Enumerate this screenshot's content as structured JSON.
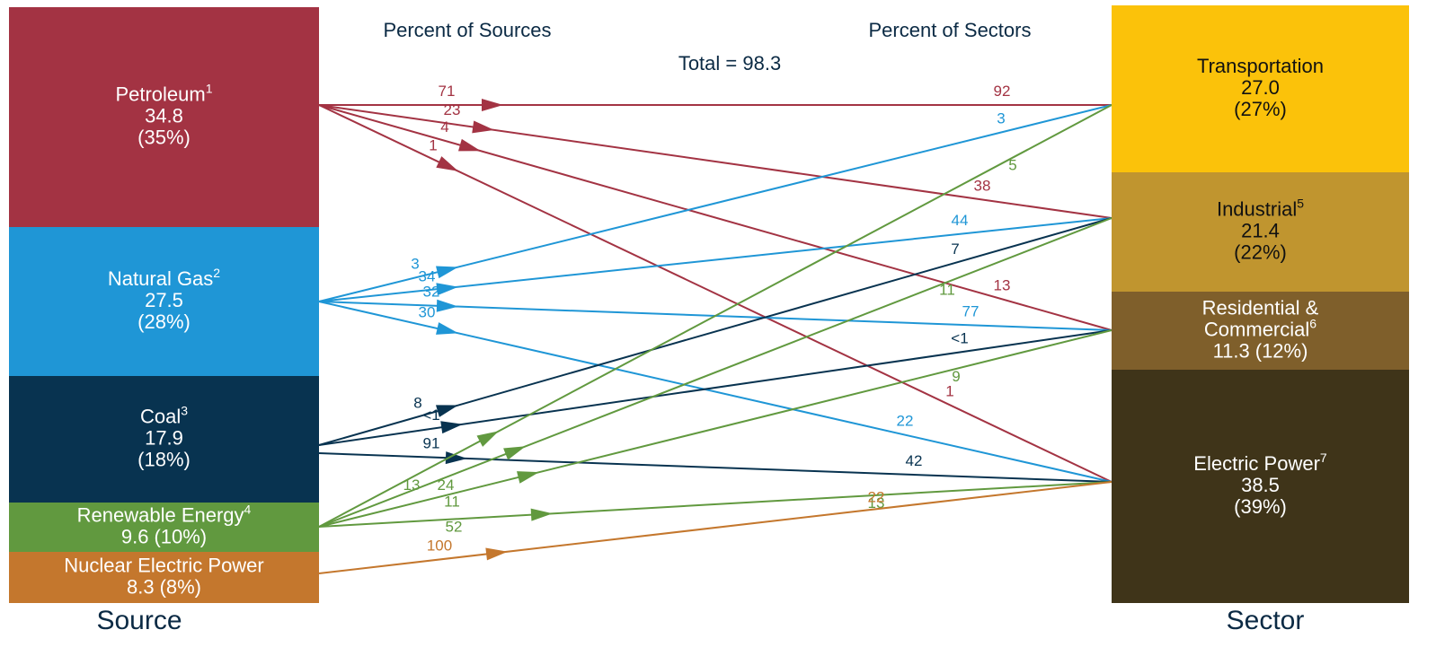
{
  "headers": {
    "sources": "Percent of Sources",
    "sectors": "Percent of Sectors",
    "total": "Total = 98.3",
    "source_axis": "Source",
    "sector_axis": "Sector"
  },
  "sources": [
    {
      "name": "Petroleum",
      "note": "1",
      "value": "34.8",
      "share": "(35%)",
      "flows": [
        {
          "source_pct": "71",
          "sector_pct": "92"
        },
        {
          "source_pct": "23",
          "sector_pct": "38"
        },
        {
          "source_pct": "4",
          "sector_pct": "13"
        },
        {
          "source_pct": "1",
          "sector_pct": "1"
        }
      ]
    },
    {
      "name": "Natural Gas",
      "note": "2",
      "value": "27.5",
      "share": "(28%)",
      "flows": [
        {
          "source_pct": "3",
          "sector_pct": "3"
        },
        {
          "source_pct": "34",
          "sector_pct": "44"
        },
        {
          "source_pct": "32",
          "sector_pct": "77"
        },
        {
          "source_pct": "30",
          "sector_pct": "22"
        }
      ]
    },
    {
      "name": "Coal",
      "note": "3",
      "value": "17.9",
      "share": "(18%)",
      "flows": [
        null,
        {
          "source_pct": "8",
          "sector_pct": "7"
        },
        {
          "source_pct": "<1",
          "sector_pct": "<1"
        },
        {
          "source_pct": "91",
          "sector_pct": "42"
        }
      ]
    },
    {
      "name": "Renewable Energy",
      "note": "4",
      "value": "9.6",
      "share": "(10%)",
      "flows": [
        {
          "source_pct": "13",
          "sector_pct": "5"
        },
        {
          "source_pct": "24",
          "sector_pct": "11"
        },
        {
          "source_pct": "11",
          "sector_pct": "9"
        },
        {
          "source_pct": "52",
          "sector_pct": "13"
        }
      ]
    },
    {
      "name": "Nuclear Electric Power",
      "value": "8.3",
      "share": "(8%)",
      "flows": [
        null,
        null,
        null,
        {
          "source_pct": "100",
          "sector_pct": "22"
        }
      ]
    }
  ],
  "sectors": [
    {
      "name": "Transportation",
      "value": "27.0",
      "share": "(27%)"
    },
    {
      "name": "Industrial",
      "note": "5",
      "value": "21.4",
      "share": "(22%)"
    },
    {
      "name": [
        "Residential &",
        "Commercial"
      ],
      "note": "6",
      "value": "11.3",
      "share": "(12%)"
    },
    {
      "name": "Electric Power",
      "note": "7",
      "value": "38.5",
      "share": "(39%)"
    }
  ]
}
